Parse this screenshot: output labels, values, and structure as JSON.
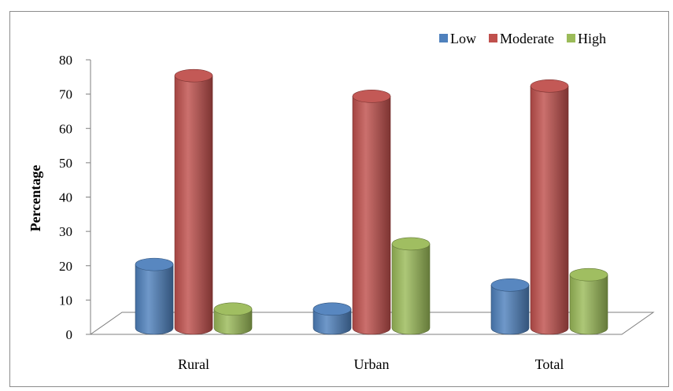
{
  "chart_data": {
    "type": "bar",
    "categories": [
      "Rural",
      "Urban",
      "Total"
    ],
    "series": [
      {
        "name": "Low",
        "values": [
          19,
          6,
          13
        ],
        "color": "#4f81bd"
      },
      {
        "name": "Moderate",
        "values": [
          74,
          68,
          71
        ],
        "color": "#c0504d"
      },
      {
        "name": "High",
        "values": [
          6,
          25,
          16
        ],
        "color": "#9bbb59"
      }
    ],
    "ylabel": "Percentage",
    "ylim": [
      0,
      80
    ],
    "yticks": [
      0,
      10,
      20,
      30,
      40,
      50,
      60,
      70,
      80
    ],
    "legend_position": "top-right",
    "grid": false,
    "style": "3d-cylinder"
  }
}
